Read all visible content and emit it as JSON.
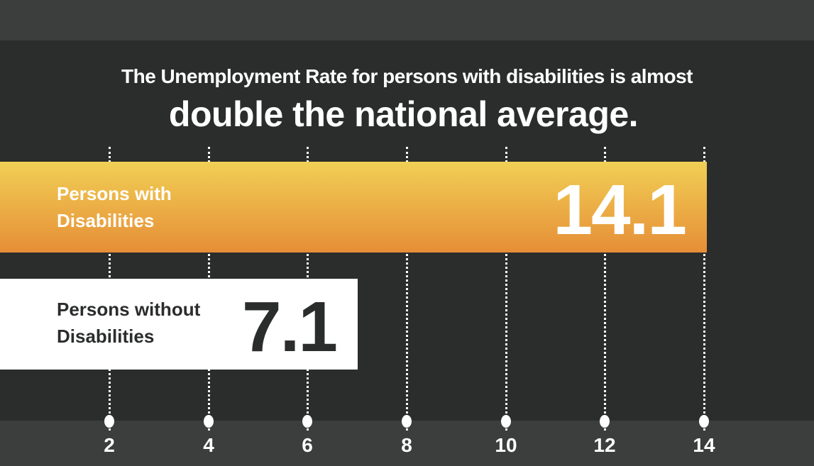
{
  "title": {
    "line1": "The Unemployment Rate for persons with disabilities is almost",
    "line2": "double the national average."
  },
  "colors": {
    "bar1_top": "#f1cf55",
    "bar1_bottom": "#e68e37",
    "bar2": "#ffffff",
    "background": "#2b2c2c",
    "band": "#3c3d3d"
  },
  "axis": {
    "ticks": [
      "2",
      "4",
      "6",
      "8",
      "10",
      "12",
      "14"
    ]
  },
  "bars": [
    {
      "label_line1": "Persons with",
      "label_line2": "Disabilities",
      "value": "14.1"
    },
    {
      "label_line1": "Persons without",
      "label_line2": "Disabilities",
      "value": "7.1"
    }
  ],
  "chart_data": {
    "type": "bar",
    "orientation": "horizontal",
    "title": "The Unemployment Rate for persons with disabilities is almost double the national average.",
    "categories": [
      "Persons with Disabilities",
      "Persons without Disabilities"
    ],
    "values": [
      14.1,
      7.1
    ],
    "xlabel": "",
    "ylabel": "",
    "xlim": [
      0,
      14.2
    ],
    "xticks": [
      2,
      4,
      6,
      8,
      10,
      12,
      14
    ],
    "grid": "vertical dotted lines"
  }
}
